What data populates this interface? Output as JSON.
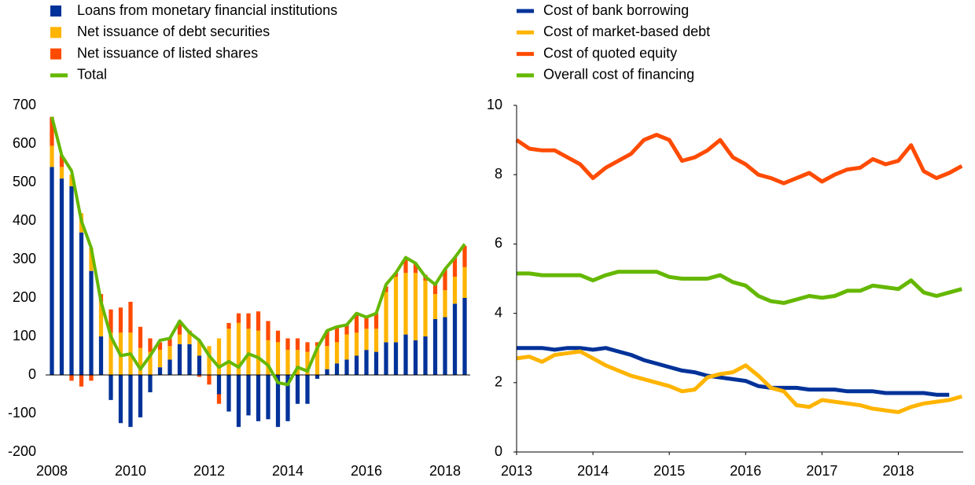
{
  "chart_data": [
    {
      "type": "bar",
      "stacked": true,
      "x": [
        2008,
        2008.25,
        2008.5,
        2008.75,
        2009,
        2009.25,
        2009.5,
        2009.75,
        2010,
        2010.25,
        2010.5,
        2010.75,
        2011,
        2011.25,
        2011.5,
        2011.75,
        2012,
        2012.25,
        2012.5,
        2012.75,
        2013,
        2013.25,
        2013.5,
        2013.75,
        2014,
        2014.25,
        2014.5,
        2014.75,
        2015,
        2015.25,
        2015.5,
        2015.75,
        2016,
        2016.25,
        2016.5,
        2016.75,
        2017,
        2017.25,
        2017.5,
        2017.75,
        2018,
        2018.25,
        2018.5
      ],
      "xlim": [
        2008,
        2018.5
      ],
      "xticks": [
        2008,
        2010,
        2012,
        2014,
        2016,
        2018
      ],
      "ylim": [
        -200,
        700
      ],
      "yticks": [
        -200,
        -100,
        0,
        100,
        200,
        300,
        400,
        500,
        600,
        700
      ],
      "series": [
        {
          "name": "Loans from monetary financial institutions",
          "color": "#003299",
          "type": "bar",
          "values": [
            540,
            510,
            490,
            370,
            270,
            100,
            -65,
            -125,
            -135,
            -110,
            -45,
            20,
            40,
            80,
            80,
            50,
            0,
            -50,
            -95,
            -135,
            -105,
            -120,
            -115,
            -135,
            -120,
            -75,
            -75,
            -10,
            15,
            30,
            40,
            50,
            65,
            60,
            85,
            85,
            105,
            90,
            100,
            145,
            150,
            185,
            200
          ]
        },
        {
          "name": "Net issuance of debt securities",
          "color": "#ffb400",
          "type": "bar",
          "values": [
            55,
            30,
            30,
            50,
            60,
            90,
            110,
            110,
            110,
            70,
            60,
            45,
            35,
            25,
            30,
            40,
            75,
            95,
            120,
            135,
            120,
            115,
            90,
            85,
            65,
            65,
            60,
            75,
            60,
            55,
            65,
            60,
            55,
            60,
            130,
            170,
            160,
            175,
            145,
            65,
            70,
            70,
            80
          ]
        },
        {
          "name": "Net issuance of listed shares",
          "color": "#ff4b00",
          "type": "bar",
          "values": [
            75,
            30,
            -15,
            -30,
            -15,
            20,
            60,
            65,
            80,
            55,
            35,
            20,
            20,
            35,
            5,
            -5,
            -25,
            -25,
            15,
            25,
            40,
            50,
            50,
            30,
            30,
            30,
            25,
            10,
            40,
            40,
            25,
            50,
            30,
            40,
            15,
            10,
            40,
            25,
            15,
            25,
            55,
            50,
            55
          ]
        },
        {
          "name": "Total",
          "color": "#65b800",
          "type": "line",
          "values": [
            670,
            570,
            530,
            400,
            330,
            190,
            100,
            50,
            55,
            15,
            50,
            90,
            95,
            140,
            110,
            90,
            50,
            20,
            35,
            20,
            55,
            45,
            25,
            -20,
            -25,
            20,
            10,
            70,
            115,
            125,
            130,
            160,
            150,
            160,
            235,
            265,
            305,
            290,
            255,
            235,
            275,
            305,
            340
          ]
        }
      ]
    },
    {
      "type": "line",
      "x": [
        2013,
        2013.167,
        2013.333,
        2013.5,
        2013.667,
        2013.833,
        2014,
        2014.167,
        2014.333,
        2014.5,
        2014.667,
        2014.833,
        2015,
        2015.167,
        2015.333,
        2015.5,
        2015.667,
        2015.833,
        2016,
        2016.167,
        2016.333,
        2016.5,
        2016.667,
        2016.833,
        2017,
        2017.167,
        2017.333,
        2017.5,
        2017.667,
        2017.833,
        2018,
        2018.167,
        2018.333,
        2018.5,
        2018.667,
        2018.833
      ],
      "xlim": [
        2013,
        2018.85
      ],
      "xticks": [
        2013,
        2014,
        2015,
        2016,
        2017,
        2018
      ],
      "ylim": [
        0,
        10
      ],
      "yticks": [
        0,
        2,
        4,
        6,
        8,
        10
      ],
      "series": [
        {
          "name": "Cost of bank borrowing",
          "color": "#003299",
          "values": [
            3.0,
            3.0,
            3.0,
            2.95,
            3.0,
            3.0,
            2.95,
            3.0,
            2.9,
            2.8,
            2.65,
            2.55,
            2.45,
            2.35,
            2.3,
            2.2,
            2.15,
            2.1,
            2.05,
            1.9,
            1.85,
            1.85,
            1.85,
            1.8,
            1.8,
            1.8,
            1.75,
            1.75,
            1.75,
            1.7,
            1.7,
            1.7,
            1.7,
            1.65,
            1.65,
            null
          ]
        },
        {
          "name": "Cost of market-based debt",
          "color": "#ffb400",
          "values": [
            2.7,
            2.75,
            2.6,
            2.8,
            2.85,
            2.9,
            2.7,
            2.5,
            2.35,
            2.2,
            2.1,
            2.0,
            1.9,
            1.75,
            1.8,
            2.15,
            2.25,
            2.3,
            2.5,
            2.2,
            1.85,
            1.75,
            1.35,
            1.3,
            1.5,
            1.45,
            1.4,
            1.35,
            1.25,
            1.2,
            1.15,
            1.3,
            1.4,
            1.45,
            1.5,
            1.6
          ]
        },
        {
          "name": "Cost of quoted equity",
          "color": "#ff4b00",
          "values": [
            9.0,
            8.75,
            8.7,
            8.7,
            8.5,
            8.3,
            7.9,
            8.2,
            8.4,
            8.6,
            9.0,
            9.15,
            9.0,
            8.4,
            8.5,
            8.7,
            9.0,
            8.5,
            8.3,
            8.0,
            7.9,
            7.75,
            7.9,
            8.05,
            7.8,
            8.0,
            8.15,
            8.2,
            8.45,
            8.3,
            8.4,
            8.85,
            8.1,
            7.9,
            8.05,
            8.25
          ]
        },
        {
          "name": "Overall cost of financing",
          "color": "#65b800",
          "values": [
            5.15,
            5.15,
            5.1,
            5.1,
            5.1,
            5.1,
            4.95,
            5.1,
            5.2,
            5.2,
            5.2,
            5.2,
            5.05,
            5.0,
            5.0,
            5.0,
            5.1,
            4.9,
            4.8,
            4.5,
            4.35,
            4.3,
            4.4,
            4.5,
            4.45,
            4.5,
            4.65,
            4.65,
            4.8,
            4.75,
            4.7,
            4.95,
            4.6,
            4.5,
            4.6,
            4.7
          ]
        }
      ]
    }
  ]
}
